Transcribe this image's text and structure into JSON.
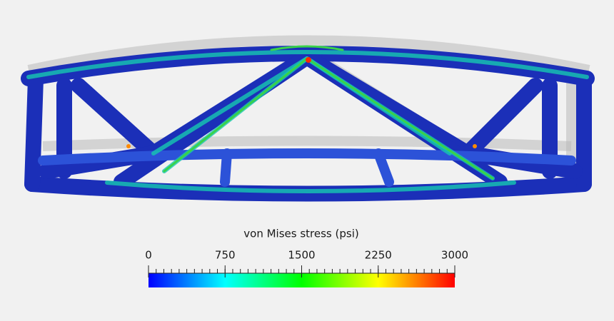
{
  "colorbar": {
    "title": "von Mises stress (psi)",
    "range": [
      0,
      3000
    ],
    "ticks": [
      0,
      750,
      1500,
      2250,
      3000
    ]
  }
}
